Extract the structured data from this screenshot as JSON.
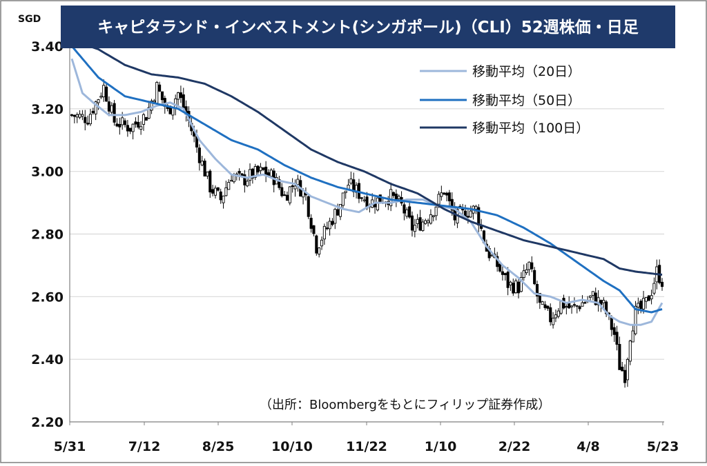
{
  "chart_data": {
    "type": "candlestick",
    "title": "キャピタランド・インベストメント(シンガポール)（CLI）52週株価・日足",
    "y_unit": "SGD",
    "ylim": [
      2.2,
      3.4
    ],
    "y_ticks": [
      "3.40",
      "3.20",
      "3.00",
      "2.80",
      "2.60",
      "2.40",
      "2.20"
    ],
    "x_ticks": [
      "5/31",
      "7/12",
      "8/25",
      "10/10",
      "11/22",
      "1/10",
      "2/22",
      "4/8",
      "5/23"
    ],
    "grid": true,
    "legend_position": "top-right",
    "source_note": "（出所：Bloombergをもとにフィリップ証券作成）",
    "colors": {
      "title_bg": "#1F3A6B",
      "ma20": "#9DB7DB",
      "ma50": "#1F70C1",
      "ma100": "#1F3864",
      "candle_edge": "#000000",
      "grid": "#D9D9D9"
    },
    "series": [
      {
        "name": "移動平均（20日）",
        "key": "ma20",
        "points": [
          [
            0,
            3.36
          ],
          [
            4,
            3.25
          ],
          [
            8,
            3.22
          ],
          [
            14,
            3.18
          ],
          [
            20,
            3.18
          ],
          [
            26,
            3.19
          ],
          [
            32,
            3.21
          ],
          [
            37,
            3.22
          ],
          [
            42,
            3.2
          ],
          [
            48,
            3.1
          ],
          [
            54,
            3.04
          ],
          [
            60,
            2.99
          ],
          [
            66,
            2.98
          ],
          [
            72,
            2.99
          ],
          [
            78,
            2.97
          ],
          [
            84,
            2.96
          ],
          [
            90,
            2.92
          ],
          [
            96,
            2.9
          ],
          [
            102,
            2.88
          ],
          [
            108,
            2.87
          ],
          [
            114,
            2.9
          ],
          [
            120,
            2.9
          ],
          [
            126,
            2.91
          ],
          [
            132,
            2.91
          ],
          [
            138,
            2.89
          ],
          [
            144,
            2.88
          ],
          [
            150,
            2.84
          ],
          [
            156,
            2.76
          ],
          [
            162,
            2.7
          ],
          [
            168,
            2.66
          ],
          [
            174,
            2.61
          ],
          [
            180,
            2.6
          ],
          [
            186,
            2.58
          ],
          [
            192,
            2.59
          ],
          [
            198,
            2.58
          ],
          [
            202,
            2.54
          ],
          [
            206,
            2.52
          ],
          [
            210,
            2.51
          ],
          [
            214,
            2.51
          ],
          [
            218,
            2.52
          ],
          [
            222,
            2.58
          ]
        ]
      },
      {
        "name": "移動平均（50日）",
        "key": "ma50",
        "points": [
          [
            0,
            3.4
          ],
          [
            10,
            3.3
          ],
          [
            20,
            3.24
          ],
          [
            30,
            3.22
          ],
          [
            40,
            3.2
          ],
          [
            50,
            3.15
          ],
          [
            60,
            3.1
          ],
          [
            70,
            3.07
          ],
          [
            80,
            3.02
          ],
          [
            90,
            2.98
          ],
          [
            100,
            2.95
          ],
          [
            110,
            2.93
          ],
          [
            120,
            2.91
          ],
          [
            130,
            2.9
          ],
          [
            140,
            2.89
          ],
          [
            150,
            2.88
          ],
          [
            160,
            2.86
          ],
          [
            170,
            2.82
          ],
          [
            180,
            2.77
          ],
          [
            190,
            2.71
          ],
          [
            200,
            2.65
          ],
          [
            206,
            2.62
          ],
          [
            212,
            2.56
          ],
          [
            218,
            2.55
          ],
          [
            222,
            2.56
          ]
        ]
      },
      {
        "name": "移動平均（100日）",
        "key": "ma100",
        "points": [
          [
            0,
            3.42
          ],
          [
            10,
            3.39
          ],
          [
            20,
            3.34
          ],
          [
            30,
            3.31
          ],
          [
            40,
            3.3
          ],
          [
            50,
            3.28
          ],
          [
            60,
            3.24
          ],
          [
            70,
            3.19
          ],
          [
            80,
            3.13
          ],
          [
            90,
            3.07
          ],
          [
            100,
            3.03
          ],
          [
            110,
            3.0
          ],
          [
            120,
            2.96
          ],
          [
            130,
            2.93
          ],
          [
            140,
            2.88
          ],
          [
            150,
            2.84
          ],
          [
            160,
            2.81
          ],
          [
            170,
            2.78
          ],
          [
            180,
            2.76
          ],
          [
            190,
            2.74
          ],
          [
            200,
            2.72
          ],
          [
            206,
            2.69
          ],
          [
            212,
            2.68
          ],
          [
            222,
            2.67
          ]
        ]
      }
    ],
    "price_path": [
      [
        0,
        3.18
      ],
      [
        6,
        3.17
      ],
      [
        12,
        3.27
      ],
      [
        16,
        3.16
      ],
      [
        22,
        3.14
      ],
      [
        28,
        3.18
      ],
      [
        32,
        3.27
      ],
      [
        36,
        3.19
      ],
      [
        40,
        3.25
      ],
      [
        44,
        3.16
      ],
      [
        48,
        3.05
      ],
      [
        52,
        2.95
      ],
      [
        56,
        2.91
      ],
      [
        60,
        2.99
      ],
      [
        64,
        2.97
      ],
      [
        68,
        2.99
      ],
      [
        72,
        3.0
      ],
      [
        76,
        2.98
      ],
      [
        80,
        2.92
      ],
      [
        84,
        2.97
      ],
      [
        88,
        2.92
      ],
      [
        92,
        2.76
      ],
      [
        96,
        2.82
      ],
      [
        100,
        2.88
      ],
      [
        104,
        2.96
      ],
      [
        108,
        2.93
      ],
      [
        112,
        2.9
      ],
      [
        116,
        2.91
      ],
      [
        120,
        2.92
      ],
      [
        124,
        2.89
      ],
      [
        128,
        2.82
      ],
      [
        132,
        2.84
      ],
      [
        136,
        2.88
      ],
      [
        140,
        2.94
      ],
      [
        144,
        2.85
      ],
      [
        148,
        2.87
      ],
      [
        152,
        2.88
      ],
      [
        156,
        2.75
      ],
      [
        160,
        2.7
      ],
      [
        164,
        2.64
      ],
      [
        168,
        2.63
      ],
      [
        172,
        2.7
      ],
      [
        176,
        2.57
      ],
      [
        180,
        2.53
      ],
      [
        184,
        2.58
      ],
      [
        188,
        2.56
      ],
      [
        192,
        2.58
      ],
      [
        196,
        2.6
      ],
      [
        200,
        2.57
      ],
      [
        204,
        2.48
      ],
      [
        206,
        2.38
      ],
      [
        208,
        2.35
      ],
      [
        210,
        2.48
      ],
      [
        212,
        2.55
      ],
      [
        214,
        2.56
      ],
      [
        216,
        2.58
      ],
      [
        218,
        2.62
      ],
      [
        220,
        2.68
      ],
      [
        222,
        2.65
      ]
    ]
  }
}
